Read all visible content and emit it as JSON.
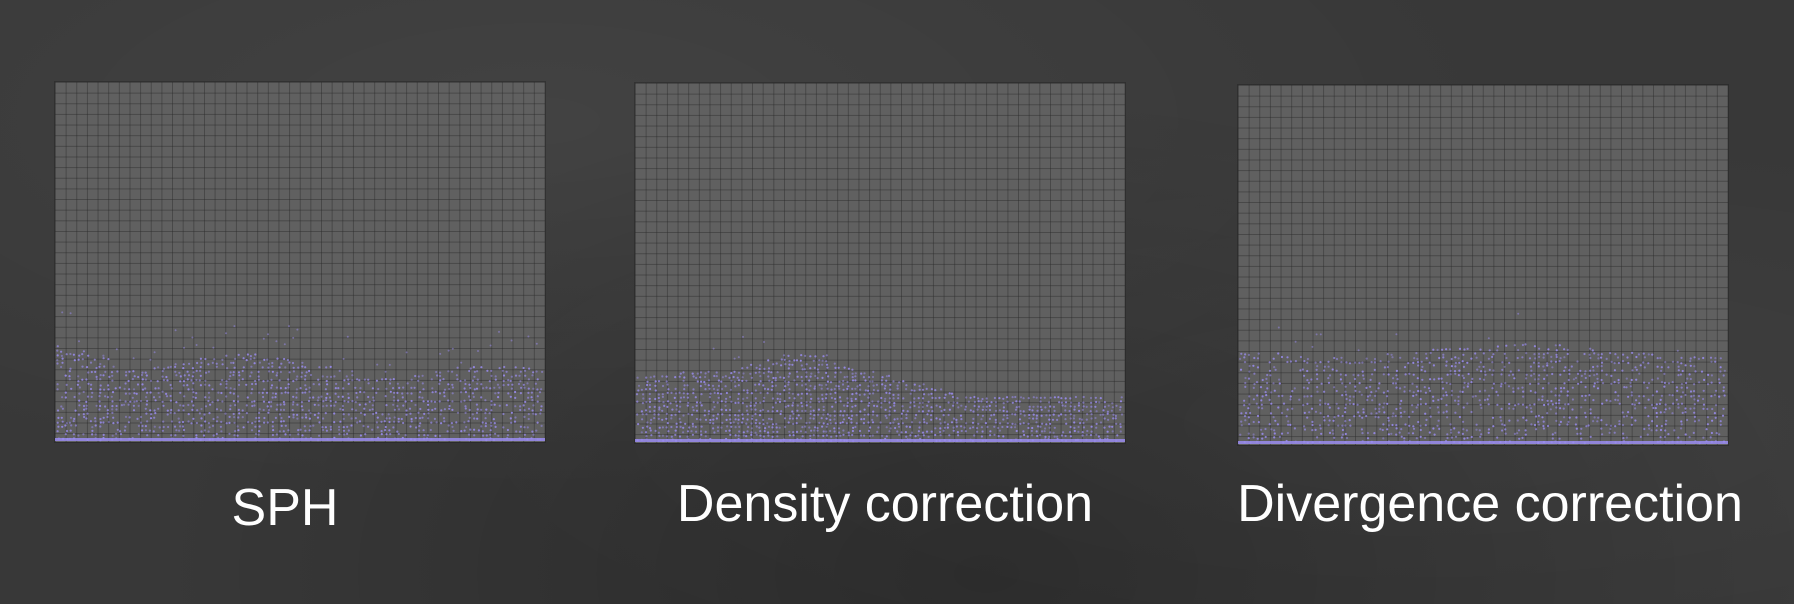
{
  "slide": {
    "panels": [
      {
        "id": "sph",
        "caption": "SPH"
      },
      {
        "id": "density",
        "caption": "Density correction"
      },
      {
        "id": "divergence",
        "caption": "Divergence correction"
      }
    ]
  },
  "colors": {
    "background": "#383838",
    "panel": "#606060",
    "grid_line": "#4a4a4a",
    "particle": "#9a8cf0",
    "caption": "#ffffff"
  }
}
